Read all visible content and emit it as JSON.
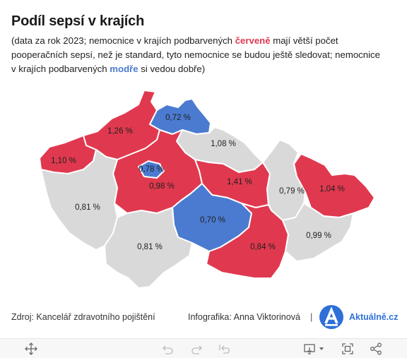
{
  "title": "Podíl sepsí v krajích",
  "subtitle": {
    "p1": "(data za rok 2023; nemocnice v krajích podbarvených ",
    "red_word": "červeně",
    "p2": " mají větší počet pooperačních sepsí, než je standard, tyto nemocnice se budou ještě sledovat; nemocnice v krajích podbarvených ",
    "blue_word": "modře",
    "p3": " si vedou dobře)"
  },
  "colors": {
    "above_standard": "#e0394f",
    "below_standard": "#4a7bd0",
    "neutral": "#d9d9d9",
    "border": "#ffffff"
  },
  "regions": [
    {
      "value": "1,26 %",
      "status": "above_standard"
    },
    {
      "value": "0,72 %",
      "status": "below_standard"
    },
    {
      "value": "1,08 %",
      "status": "neutral"
    },
    {
      "value": "1,10 %",
      "status": "above_standard"
    },
    {
      "value": "0,78 %",
      "status": "below_standard"
    },
    {
      "value": "0,98 %",
      "status": "above_standard"
    },
    {
      "value": "1,41 %",
      "status": "above_standard"
    },
    {
      "value": "0,79 %",
      "status": "neutral"
    },
    {
      "value": "1,04 %",
      "status": "above_standard"
    },
    {
      "value": "0,81 %",
      "status": "neutral"
    },
    {
      "value": "0,70 %",
      "status": "below_standard"
    },
    {
      "value": "0,81 %",
      "status": "neutral"
    },
    {
      "value": "0,84 %",
      "status": "above_standard"
    },
    {
      "value": "0,99 %",
      "status": "neutral"
    }
  ],
  "footer": {
    "source": "Zdroj: Kancelář zdravotního pojištění",
    "credit": "Infografika: Anna Viktorinová",
    "separator": "|",
    "logo_text": "Aktuálně.cz"
  },
  "toolbar": {
    "icons": [
      "move-icon",
      "undo-icon",
      "redo-icon",
      "revert-icon",
      "download-icon",
      "fullscreen-icon",
      "share-icon"
    ]
  }
}
